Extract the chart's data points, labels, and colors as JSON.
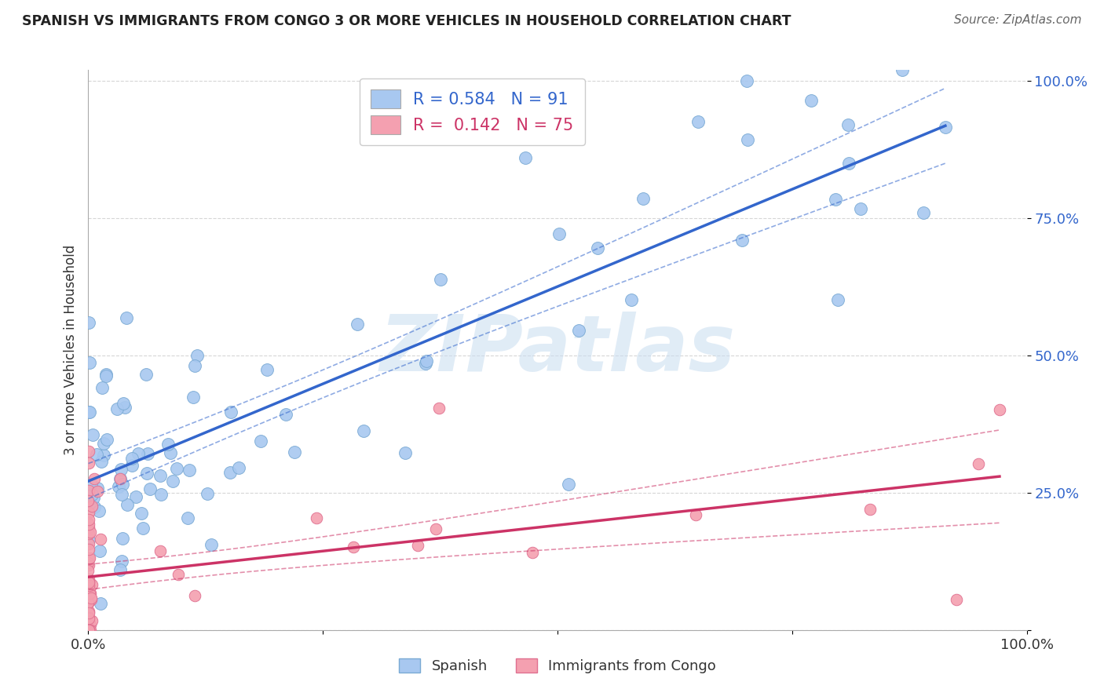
{
  "title": "SPANISH VS IMMIGRANTS FROM CONGO 3 OR MORE VEHICLES IN HOUSEHOLD CORRELATION CHART",
  "source": "Source: ZipAtlas.com",
  "ylabel": "3 or more Vehicles in Household",
  "xlim": [
    0.0,
    1.0
  ],
  "ylim": [
    0.0,
    1.0
  ],
  "spanish_color": "#a8c8f0",
  "spanish_edge_color": "#7aaad4",
  "congo_color": "#f4a0b0",
  "congo_edge_color": "#e07090",
  "spanish_line_color": "#3366cc",
  "congo_line_color": "#cc3366",
  "grid_color": "#cccccc",
  "background_color": "#ffffff",
  "watermark_color": "#c8ddf0",
  "spanish_R": 0.584,
  "spanish_N": 91,
  "congo_R": 0.142,
  "congo_N": 75
}
